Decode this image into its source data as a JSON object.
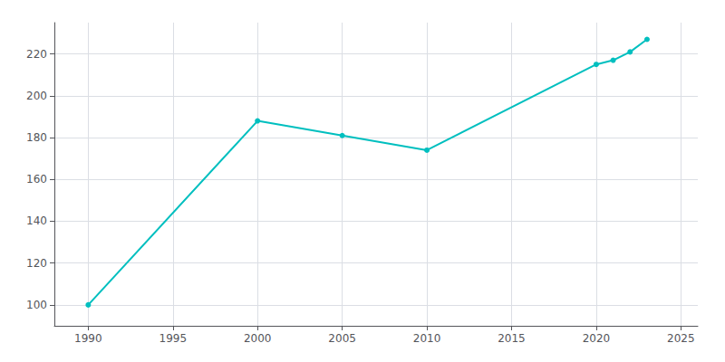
{
  "chart_data": {
    "type": "line",
    "x": [
      1990,
      2000,
      2005,
      2010,
      2020,
      2021,
      2022,
      2023
    ],
    "values": [
      100,
      188,
      181,
      174,
      215,
      217,
      221,
      227
    ],
    "color": "#00BFBF",
    "marker": "circle",
    "xlim": [
      1988,
      2026
    ],
    "xticks": [
      1990,
      1995,
      2000,
      2005,
      2010,
      2015,
      2020,
      2025
    ],
    "ylim": [
      90,
      235
    ],
    "yticks": [
      100,
      120,
      140,
      160,
      180,
      200,
      220
    ],
    "grid": true
  }
}
